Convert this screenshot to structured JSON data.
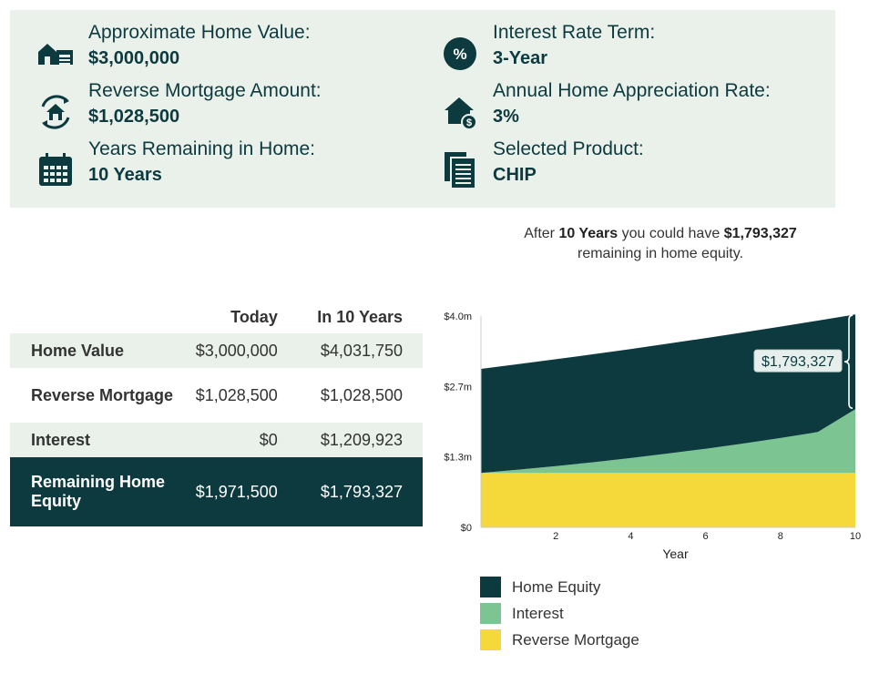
{
  "summary": {
    "items": [
      {
        "label": "Approximate Home Value:",
        "value": "$3,000,000",
        "icon": "house-garage-icon"
      },
      {
        "label": "Interest Rate Term:",
        "value": "3-Year",
        "icon": "percent-icon"
      },
      {
        "label": "Reverse Mortgage Amount:",
        "value": "$1,028,500",
        "icon": "house-refresh-icon"
      },
      {
        "label": "Annual Home Appreciation Rate:",
        "value": "3%",
        "icon": "house-dollar-icon"
      },
      {
        "label": "Years Remaining in Home:",
        "value": "10 Years",
        "icon": "calendar-icon"
      },
      {
        "label": "Selected Product:",
        "value": "CHIP",
        "icon": "document-stack-icon"
      }
    ]
  },
  "headline": {
    "prefix": "After",
    "years": "10 Years",
    "middle": "you could have",
    "amount": "$1,793,327",
    "suffix": "remaining in home equity."
  },
  "table": {
    "columns": [
      "Today",
      "In 10 Years"
    ],
    "rows": [
      {
        "label": "Home Value",
        "today": "$3,000,000",
        "future": "$4,031,750"
      },
      {
        "label": "Reverse Mortgage",
        "today": "$1,028,500",
        "future": "$1,028,500"
      },
      {
        "label": "Interest",
        "today": "$0",
        "future": "$1,209,923"
      },
      {
        "label": "Remaining Home Equity",
        "today": "$1,971,500",
        "future": "$1,793,327"
      }
    ]
  },
  "colors": {
    "home_equity": "#0d3a3f",
    "interest": "#7cc492",
    "reverse_mortgage": "#f5d93a",
    "panel": "#eaf1ea"
  },
  "chart_data": {
    "type": "area",
    "stacked": true,
    "x": [
      0,
      1,
      2,
      3,
      4,
      5,
      6,
      7,
      8,
      9,
      10
    ],
    "series": [
      {
        "name": "Reverse Mortgage",
        "values": [
          1028500,
          1028500,
          1028500,
          1028500,
          1028500,
          1028500,
          1028500,
          1028500,
          1028500,
          1028500,
          1028500
        ]
      },
      {
        "name": "Interest",
        "values": [
          0,
          64000,
          132000,
          205000,
          284000,
          369000,
          460000,
          558000,
          663000,
          776000,
          1209923
        ]
      },
      {
        "name": "Home Equity",
        "values": [
          1971500,
          1997500,
          2022176,
          2043545,
          2061178,
          2080237,
          2092543,
          2104023,
          2111784,
          2117054,
          1793327
        ]
      }
    ],
    "totals": [
      3000000,
      3090000,
      3182700,
      3278181,
      3376526,
      3477822,
      3582157,
      3689622,
      3800310,
      3914320,
      4031750
    ],
    "xlabel": "Year",
    "xticks": [
      2,
      4,
      6,
      8,
      10
    ],
    "yticks": [
      0,
      1333333,
      2666667,
      4000000
    ],
    "ytick_labels": [
      "$0",
      "$1.3m",
      "$2.7m",
      "$4.0m"
    ],
    "ylim": [
      0,
      4000000
    ],
    "xlim": [
      0,
      10
    ],
    "annotation": "$1,793,327",
    "legend_position": "bottom",
    "legend": [
      "Home Equity",
      "Interest",
      "Reverse Mortgage"
    ]
  }
}
